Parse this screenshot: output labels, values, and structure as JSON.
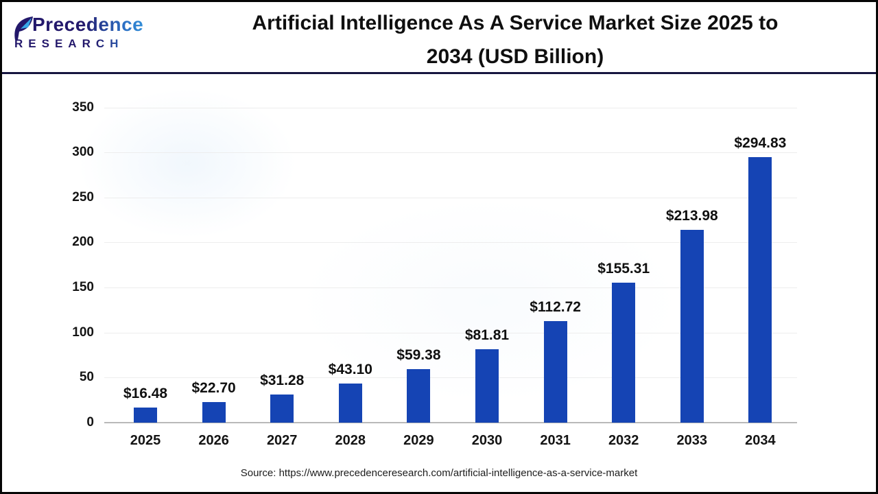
{
  "header": {
    "logo": {
      "name": "Precedence",
      "subtitle": "RESEARCH",
      "navy": "#23186b",
      "light_blue": "#38a8e8"
    },
    "title_line1": "Artificial Intelligence As A Service Market Size 2025 to",
    "title_line2": "2034 (USD Billion)"
  },
  "chart_data": {
    "type": "bar",
    "title": "Artificial Intelligence As A Service Market Size 2025 to 2034 (USD Billion)",
    "categories": [
      "2025",
      "2026",
      "2027",
      "2028",
      "2029",
      "2030",
      "2031",
      "2032",
      "2033",
      "2034"
    ],
    "values": [
      16.48,
      22.7,
      31.28,
      43.1,
      59.38,
      81.81,
      112.72,
      155.31,
      213.98,
      294.83
    ],
    "value_labels": [
      "$16.48",
      "$22.70",
      "$31.28",
      "$43.10",
      "$59.38",
      "$81.81",
      "$112.72",
      "$155.31",
      "$213.98",
      "$294.83"
    ],
    "xlabel": "",
    "ylabel": "",
    "unit": "USD Billion",
    "ylim": [
      0,
      350
    ],
    "yticks": [
      0,
      50,
      100,
      150,
      200,
      250,
      300,
      350
    ],
    "grid": true,
    "legend": false,
    "bar_color": "#1544b4"
  },
  "footer": {
    "source": "Source: https://www.precedenceresearch.com/artificial-intelligence-as-a-service-market"
  }
}
